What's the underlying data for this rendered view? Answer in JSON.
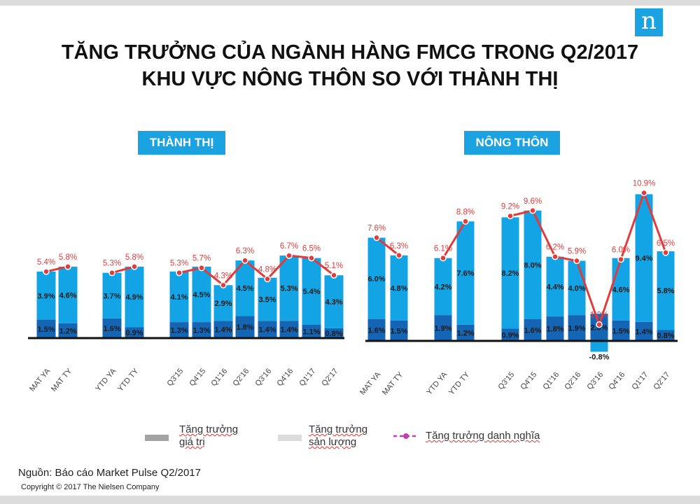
{
  "logo": {
    "letter": "n"
  },
  "title": {
    "line1": "TĂNG TRƯỞNG CỦA NGÀNH HÀNG FMCG TRONG Q2/2017",
    "line2": "KHU VỰC NÔNG THÔN SO VỚI THÀNH THỊ"
  },
  "legend": {
    "value_growth_line1": "Tăng trưởng",
    "value_growth_line2": "giá trị",
    "volume_growth_line1": "Tăng trưởng",
    "volume_growth_line2": "sản lượng",
    "nominal_growth": "Tăng trưởng danh nghĩa"
  },
  "source": "Nguồn: Báo cáo Market Pulse Q2/2017",
  "copyright": "Copyright © 2017  The Nielsen Company",
  "colors": {
    "value_bar": "#1565b5",
    "volume_bar": "#12a4e4",
    "line": "#e03c3c",
    "badge": "#1aa3e0",
    "legend_value": "#a3a3a3",
    "legend_volume": "#dcdcdc",
    "legend_line": "#c03fb0"
  },
  "chart_data": [
    {
      "type": "bar",
      "title": "THÀNH THỊ",
      "categories": [
        "MAT YA",
        "MAT TY",
        "YTD YA",
        "YTD TY",
        "Q3'15",
        "Q4'15",
        "Q1'16",
        "Q2'16",
        "Q3'16",
        "Q4'16",
        "Q1'17",
        "Q2'17"
      ],
      "series": [
        {
          "values": [
            1.5,
            1.2,
            1.6,
            0.9,
            1.3,
            1.3,
            1.4,
            1.8,
            1.4,
            1.4,
            1.1,
            0.8
          ]
        },
        {
          "values": [
            3.9,
            4.6,
            3.7,
            4.9,
            4.1,
            4.5,
            2.9,
            4.5,
            3.5,
            5.3,
            5.4,
            4.3
          ]
        },
        {
          "values": [
            5.4,
            5.8,
            5.3,
            5.8,
            5.3,
            5.7,
            4.3,
            6.3,
            4.8,
            6.7,
            6.5,
            5.1
          ]
        }
      ],
      "unit": "%"
    },
    {
      "type": "bar",
      "title": "NÔNG THÔN",
      "categories": [
        "MAT YA",
        "MAT TY",
        "YTD YA",
        "YTD TY",
        "Q3'15",
        "Q4'15",
        "Q1'16",
        "Q2'16",
        "Q3'16",
        "Q4'16",
        "Q1'17",
        "Q2'17"
      ],
      "series": [
        {
          "values": [
            1.6,
            1.5,
            1.9,
            1.2,
            0.9,
            1.6,
            1.8,
            1.9,
            -0.8,
            1.5,
            1.4,
            0.8
          ]
        },
        {
          "values": [
            6.0,
            4.8,
            4.2,
            7.6,
            8.2,
            8.0,
            4.4,
            4.0,
            2.0,
            4.6,
            9.4,
            5.8
          ]
        },
        {
          "values": [
            7.6,
            6.3,
            6.1,
            8.8,
            9.2,
            9.6,
            6.2,
            5.9,
            1.2,
            6.0,
            10.9,
            6.5
          ]
        }
      ],
      "unit": "%"
    }
  ]
}
